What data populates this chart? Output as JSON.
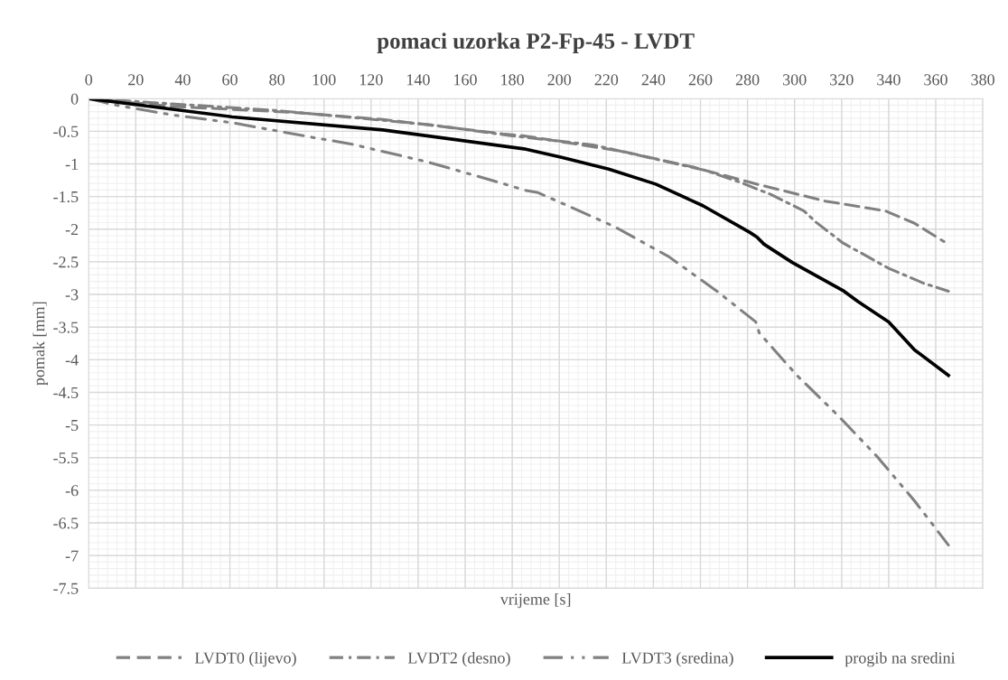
{
  "chart_data": {
    "type": "line",
    "title": "pomaci uzorka P2-Fp-45 - LVDT",
    "xlabel": "vrijeme [s]",
    "ylabel": "pomak [mm]",
    "xlim": [
      0,
      380
    ],
    "xticks": [
      0,
      20,
      40,
      60,
      80,
      100,
      120,
      140,
      160,
      180,
      200,
      220,
      240,
      260,
      280,
      300,
      320,
      340,
      360,
      380
    ],
    "ylim": [
      -7.5,
      0
    ],
    "yticks": [
      0,
      -0.5,
      -1,
      -1.5,
      -2,
      -2.5,
      -3,
      -3.5,
      -4,
      -4.5,
      -5,
      -5.5,
      -6,
      -6.5,
      -7,
      -7.5
    ],
    "grid": true,
    "legend": "bottom",
    "marker": "none",
    "series": [
      {
        "name": "LVDT0 (lijevo)",
        "color": "#808080",
        "line_style": "dashed",
        "x": [
          0,
          35.5,
          86.5,
          125,
          176,
          185,
          227,
          257,
          285,
          313,
          338.5,
          351,
          363.5
        ],
        "values": [
          0,
          -0.12,
          -0.21,
          -0.32,
          -0.54,
          -0.57,
          -0.81,
          -1.05,
          -1.32,
          -1.57,
          -1.72,
          -1.91,
          -2.19
        ]
      },
      {
        "name": "LVDT2 (desno)",
        "color": "#808080",
        "line_style": "dashdot",
        "x": [
          0,
          44,
          79,
          112,
          145,
          180,
          214.5,
          242.6,
          262,
          276,
          290,
          304,
          309,
          320.5,
          340,
          355,
          365.4
        ],
        "values": [
          0,
          -0.1,
          -0.18,
          -0.29,
          -0.4,
          -0.57,
          -0.71,
          -0.94,
          -1.1,
          -1.27,
          -1.47,
          -1.72,
          -1.89,
          -2.21,
          -2.6,
          -2.83,
          -2.95
        ]
      },
      {
        "name": "LVDT3 (sredina)",
        "color": "#808080",
        "line_style": "dashdotdot",
        "x": [
          0,
          10,
          35.5,
          61,
          93,
          112,
          144,
          175,
          186,
          191,
          223.4,
          246.5,
          267,
          283.5,
          285,
          301,
          318.6,
          335,
          350.7,
          365.4
        ],
        "values": [
          0,
          -0.09,
          -0.25,
          -0.37,
          -0.58,
          -0.7,
          -0.97,
          -1.29,
          -1.41,
          -1.44,
          -1.96,
          -2.42,
          -2.95,
          -3.42,
          -3.59,
          -4.24,
          -4.86,
          -5.48,
          -6.15,
          -6.84
        ]
      },
      {
        "name": "progib na sredini",
        "color": "#000000",
        "line_style": "solid",
        "x": [
          0,
          61,
          125,
          185,
          201,
          221,
          241,
          261,
          281,
          284,
          287,
          299,
          321,
          327,
          340,
          351,
          365.4
        ],
        "values": [
          0,
          -0.28,
          -0.48,
          -0.77,
          -0.9,
          -1.08,
          -1.31,
          -1.64,
          -2.05,
          -2.12,
          -2.23,
          -2.51,
          -2.95,
          -3.11,
          -3.42,
          -3.85,
          -4.24
        ]
      }
    ]
  }
}
